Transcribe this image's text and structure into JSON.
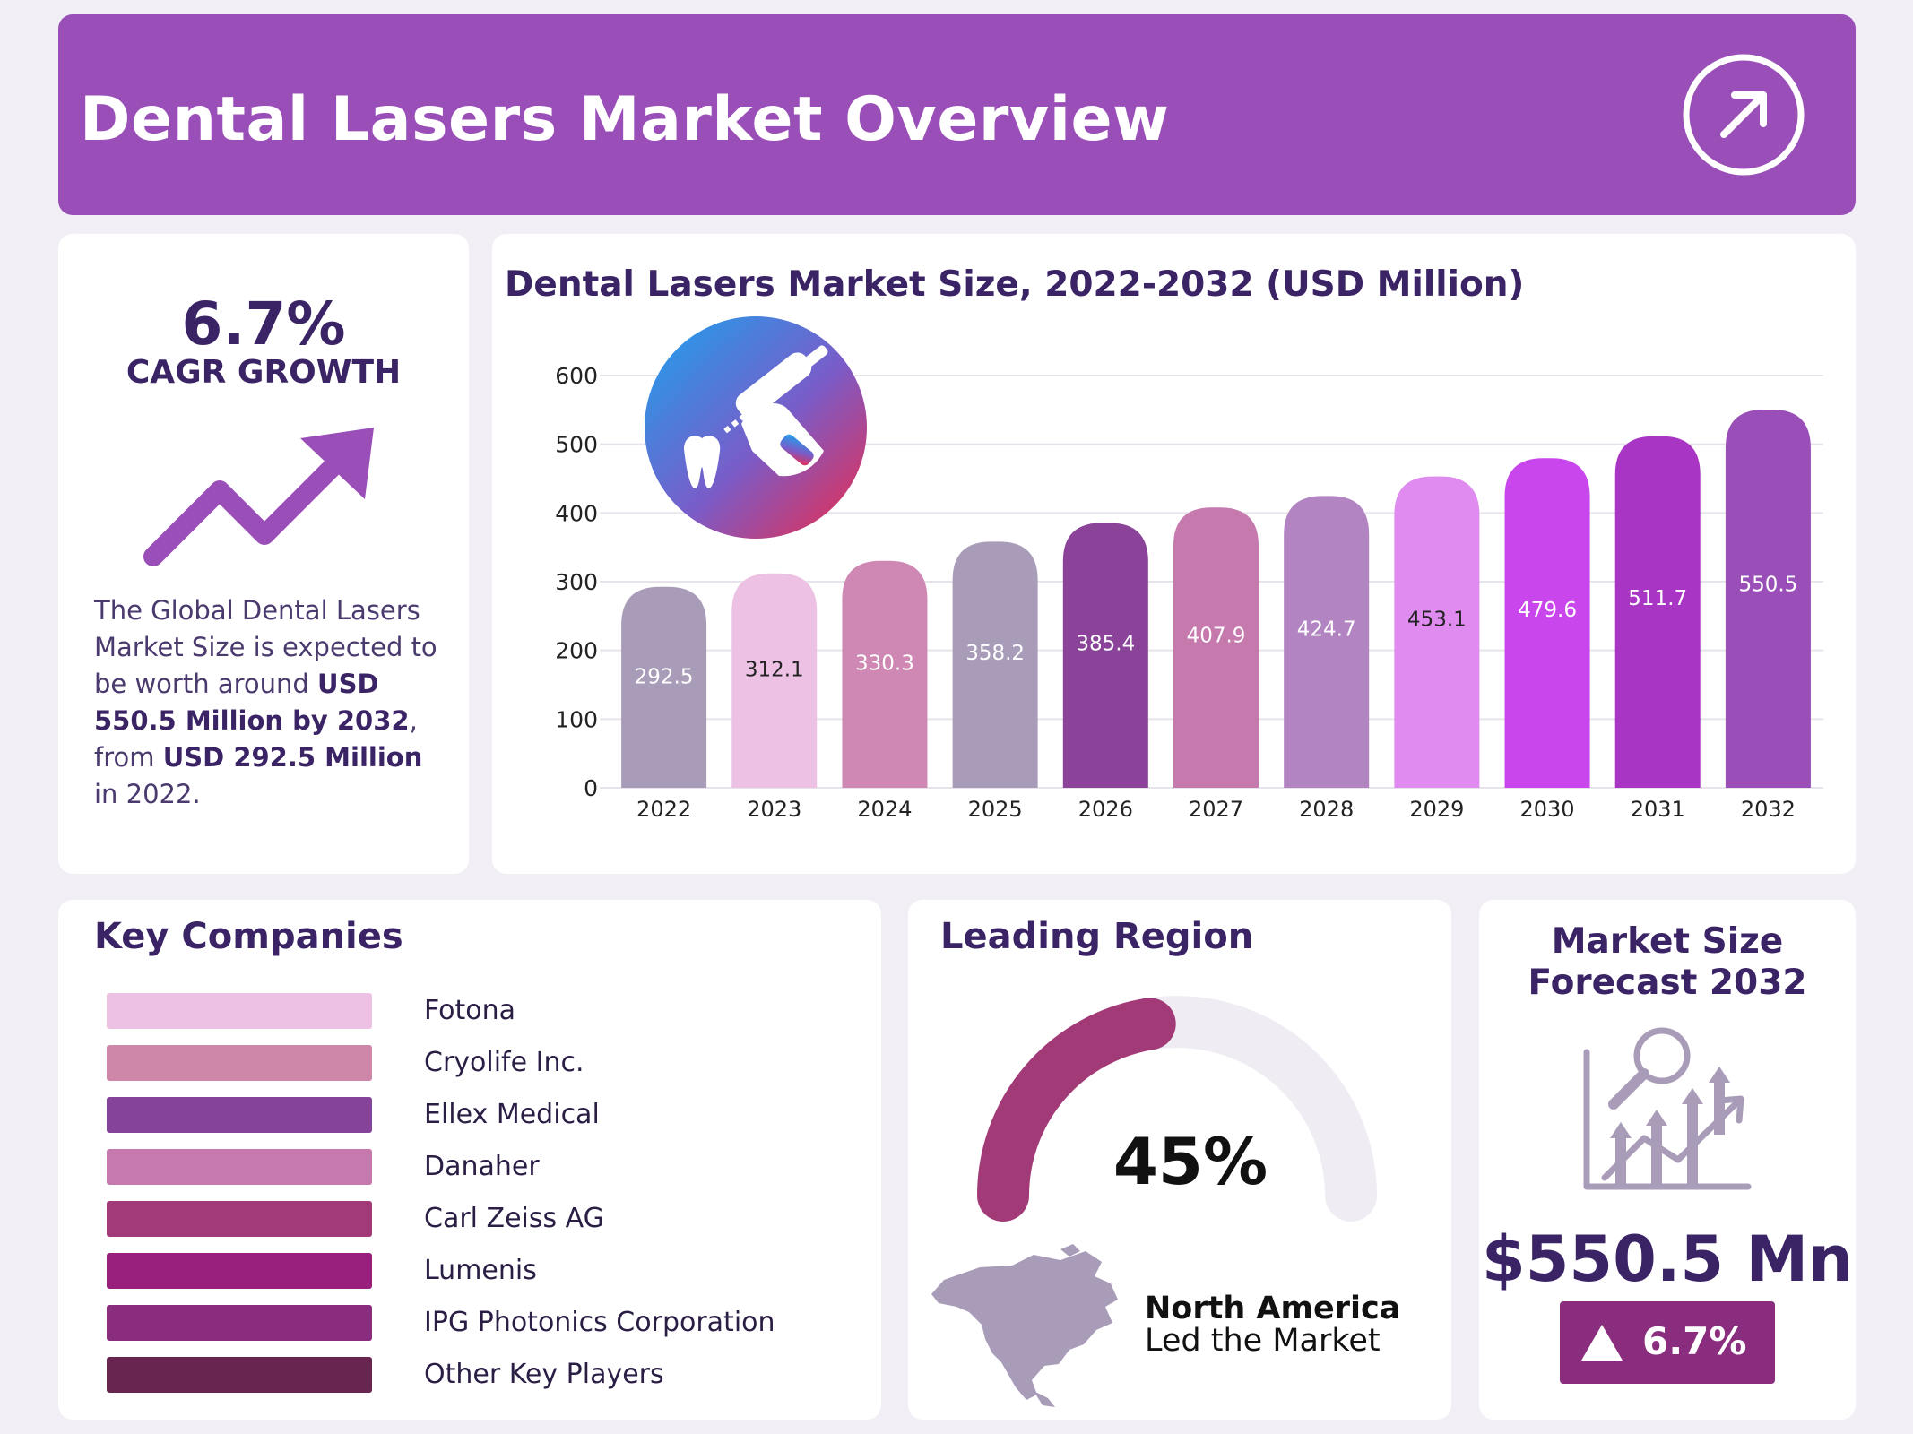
{
  "header": {
    "title": "Dental Lasers Market Overview",
    "icon": "arrow-up-right-icon"
  },
  "cagr": {
    "value": "6.7%",
    "label": "CAGR GROWTH",
    "icon": "trend-up-icon",
    "desc": {
      "part1": "The Global Dental Lasers Market Size is expected to be worth around ",
      "bold1": "USD 550.5 Million by 2032",
      "part2": ", from ",
      "bold2": "USD 292.5 Million",
      "part3": " in 2022."
    }
  },
  "chart_data": {
    "type": "bar",
    "title": "Dental Lasers Market Size, 2022-2032 (USD Million)",
    "categories": [
      "2022",
      "2023",
      "2024",
      "2025",
      "2026",
      "2027",
      "2028",
      "2029",
      "2030",
      "2031",
      "2032"
    ],
    "values": [
      292.5,
      312.1,
      330.3,
      358.2,
      385.4,
      407.9,
      424.7,
      453.1,
      479.6,
      511.7,
      550.5
    ],
    "value_labels": [
      "292.5",
      "312.1",
      "330.3",
      "358.2",
      "385.4",
      "407.9",
      "424.7",
      "453.1",
      "479.6",
      "511.7",
      "550.5"
    ],
    "bar_colors": [
      "#a99cb8",
      "#ecc1e3",
      "#cf87b3",
      "#a99cb8",
      "#8a4399",
      "#c579ad",
      "#b285c2",
      "#e08bf0",
      "#c946ec",
      "#a935c4",
      "#9a4fb8"
    ],
    "label_colors": [
      "#ffffff",
      "#222222",
      "#ffffff",
      "#ffffff",
      "#ffffff",
      "#ffffff",
      "#ffffff",
      "#222222",
      "#ffffff",
      "#ffffff",
      "#ffffff"
    ],
    "ylim": [
      0,
      600
    ],
    "yticks": [
      "0",
      "100",
      "200",
      "300",
      "400",
      "500",
      "600"
    ],
    "grid": true,
    "xlabel": "",
    "ylabel": ""
  },
  "companies": {
    "title": "Key Companies",
    "items": [
      {
        "name": "Fotona",
        "color": "#ecc1e3"
      },
      {
        "name": "Cryolife Inc.",
        "color": "#cf87a9"
      },
      {
        "name": "Ellex Medical",
        "color": "#85449a"
      },
      {
        "name": "Danaher",
        "color": "#c579ad"
      },
      {
        "name": "Carl Zeiss AG",
        "color": "#a33a78"
      },
      {
        "name": "Lumenis",
        "color": "#981f7c"
      },
      {
        "name": "IPG Photonics Corporation",
        "color": "#8b2d7e"
      },
      {
        "name": "Other Key Players",
        "color": "#68254f"
      }
    ]
  },
  "region": {
    "title": "Leading Region",
    "percent": "45%",
    "share": 45,
    "name": "North America",
    "caption": "Led the Market",
    "gauge_color": "#a33a78",
    "track_color": "#efedf3"
  },
  "forecast": {
    "title_line1": "Market Size",
    "title_line2": "Forecast 2032",
    "value": "$550.5 Mn",
    "growth": "6.7%",
    "icon": "analytics-chart-icon"
  }
}
